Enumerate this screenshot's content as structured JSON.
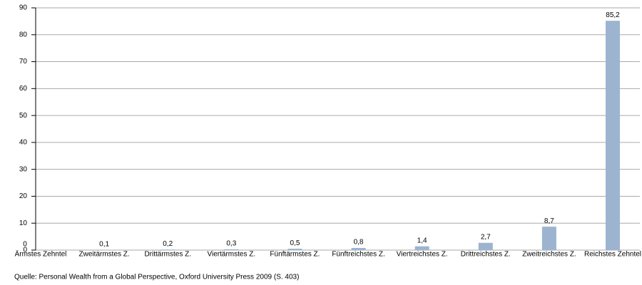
{
  "chart_data": {
    "type": "bar",
    "categories": [
      "Ärmstes Zehntel",
      "Zweitärmstes Z.",
      "Drittärmstes Z.",
      "Viertärmstes Z.",
      "Fünftärmstes Z.",
      "Fünftreichstes Z.",
      "Viertreichstes Z.",
      "Drittreichstes Z.",
      "Zweitreichstes Z.",
      "Reichstes Zehntel"
    ],
    "values": [
      0,
      0.1,
      0.2,
      0.3,
      0.5,
      0.8,
      1.4,
      2.7,
      8.7,
      85.2
    ],
    "value_labels": [
      "0",
      "0,1",
      "0,2",
      "0,3",
      "0,5",
      "0,8",
      "1,4",
      "2,7",
      "8,7",
      "85,2"
    ],
    "color": "#9cb4cf",
    "ylim": [
      0,
      90
    ],
    "yticks": [
      0,
      10,
      20,
      30,
      40,
      50,
      60,
      70,
      80,
      90
    ],
    "grid": true,
    "source": "Quelle: Personal Wealth from a Global Perspective, Oxford University Press 2009 (S. 403)"
  }
}
